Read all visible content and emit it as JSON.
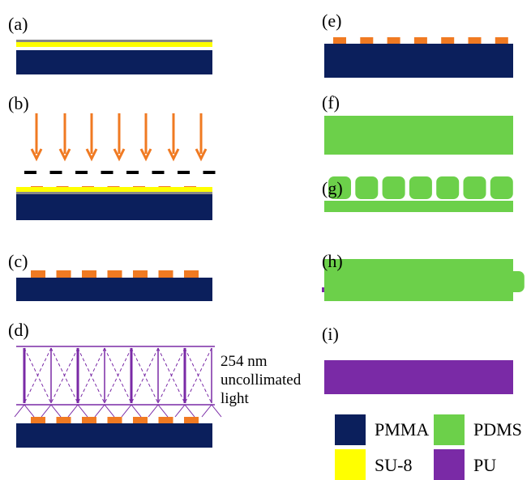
{
  "panels": [
    {
      "label": "(a)"
    },
    {
      "label": "(b)"
    },
    {
      "label": "(c)"
    },
    {
      "label": "(d)"
    },
    {
      "label": "(e)"
    },
    {
      "label": "(f)"
    },
    {
      "label": "(g)"
    },
    {
      "label": "(h)"
    },
    {
      "label": "(i)"
    }
  ],
  "annotation": {
    "lines": [
      "254 nm",
      "uncollimated",
      "light"
    ]
  },
  "legend": [
    {
      "label": "PMMA"
    },
    {
      "label": "PDMS"
    },
    {
      "label": "SU-8"
    },
    {
      "label": "PU"
    }
  ]
}
